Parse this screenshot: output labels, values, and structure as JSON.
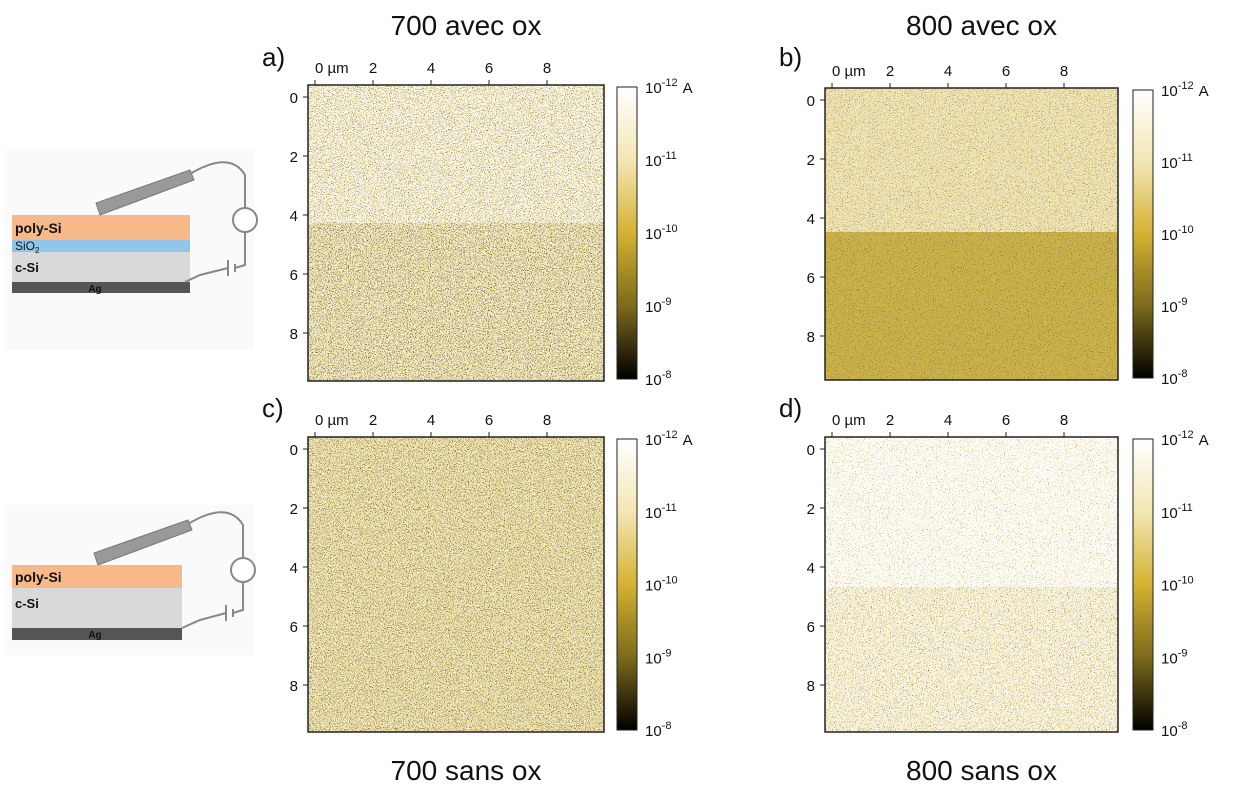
{
  "diagrams": [
    {
      "labels": [
        "poly-Si",
        "SiO",
        "2",
        "c-Si",
        "Ag"
      ]
    },
    {
      "labels": [
        "poly-Si",
        "c-Si",
        "Ag"
      ]
    }
  ],
  "panels": [
    {
      "letter": "a)",
      "title": "700  avec ox",
      "x_ticks": [
        "0 µm",
        "2",
        "4",
        "6",
        "8"
      ],
      "y_ticks": [
        "0",
        "2",
        "4",
        "6",
        "8"
      ],
      "colorbar_ticks": [
        {
          "base": "10",
          "exp": "-12"
        },
        {
          "base": "10",
          "exp": "-11"
        },
        {
          "base": "10",
          "exp": "-10"
        },
        {
          "base": "10",
          "exp": "-9"
        },
        {
          "base": "10",
          "exp": "-8"
        }
      ],
      "unit": "A"
    },
    {
      "letter": "b)",
      "title": "800  avec ox",
      "x_ticks": [
        "0 µm",
        "2",
        "4",
        "6",
        "8"
      ],
      "y_ticks": [
        "0",
        "2",
        "4",
        "6",
        "8"
      ],
      "colorbar_ticks": [
        {
          "base": "10",
          "exp": "-12"
        },
        {
          "base": "10",
          "exp": "-11"
        },
        {
          "base": "10",
          "exp": "-10"
        },
        {
          "base": "10",
          "exp": "-9"
        },
        {
          "base": "10",
          "exp": "-8"
        }
      ],
      "unit": "A"
    },
    {
      "letter": "c)",
      "title": "700  sans ox",
      "x_ticks": [
        "0 µm",
        "2",
        "4",
        "6",
        "8"
      ],
      "y_ticks": [
        "0",
        "2",
        "4",
        "6",
        "8"
      ],
      "colorbar_ticks": [
        {
          "base": "10",
          "exp": "-12"
        },
        {
          "base": "10",
          "exp": "-11"
        },
        {
          "base": "10",
          "exp": "-10"
        },
        {
          "base": "10",
          "exp": "-9"
        },
        {
          "base": "10",
          "exp": "-8"
        }
      ],
      "unit": "A"
    },
    {
      "letter": "d)",
      "title": "800  sans ox",
      "x_ticks": [
        "0 µm",
        "2",
        "4",
        "6",
        "8"
      ],
      "y_ticks": [
        "0",
        "2",
        "4",
        "6",
        "8"
      ],
      "colorbar_ticks": [
        {
          "base": "10",
          "exp": "-12"
        },
        {
          "base": "10",
          "exp": "-11"
        },
        {
          "base": "10",
          "exp": "-10"
        },
        {
          "base": "10",
          "exp": "-9"
        },
        {
          "base": "10",
          "exp": "-8"
        }
      ],
      "unit": "A"
    }
  ]
}
